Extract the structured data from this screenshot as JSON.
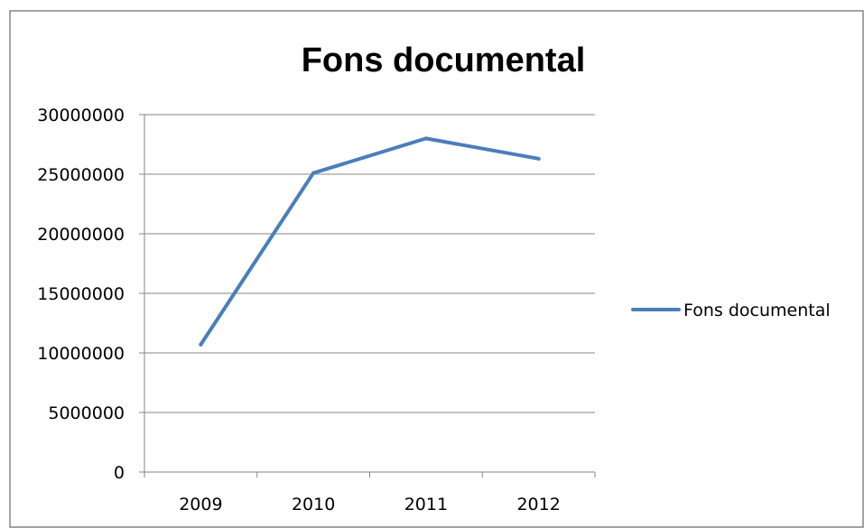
{
  "chart_data": {
    "type": "line",
    "title": "Fons documental",
    "xlabel": "",
    "ylabel": "",
    "categories": [
      "2009",
      "2010",
      "2011",
      "2012"
    ],
    "series": [
      {
        "name": "Fons documental",
        "values": [
          10700000,
          25100000,
          28000000,
          26300000
        ],
        "color": "#4a7ebb"
      }
    ],
    "ylim": [
      0,
      30000000
    ],
    "yticks": [
      0,
      5000000,
      10000000,
      15000000,
      20000000,
      25000000,
      30000000
    ],
    "ytick_labels": [
      "0",
      "5000000",
      "10000000",
      "15000000",
      "20000000",
      "25000000",
      "30000000"
    ],
    "grid": "horizontal",
    "legend_position": "right",
    "colors": {
      "gridline": "#868686",
      "border": "#868686"
    }
  }
}
